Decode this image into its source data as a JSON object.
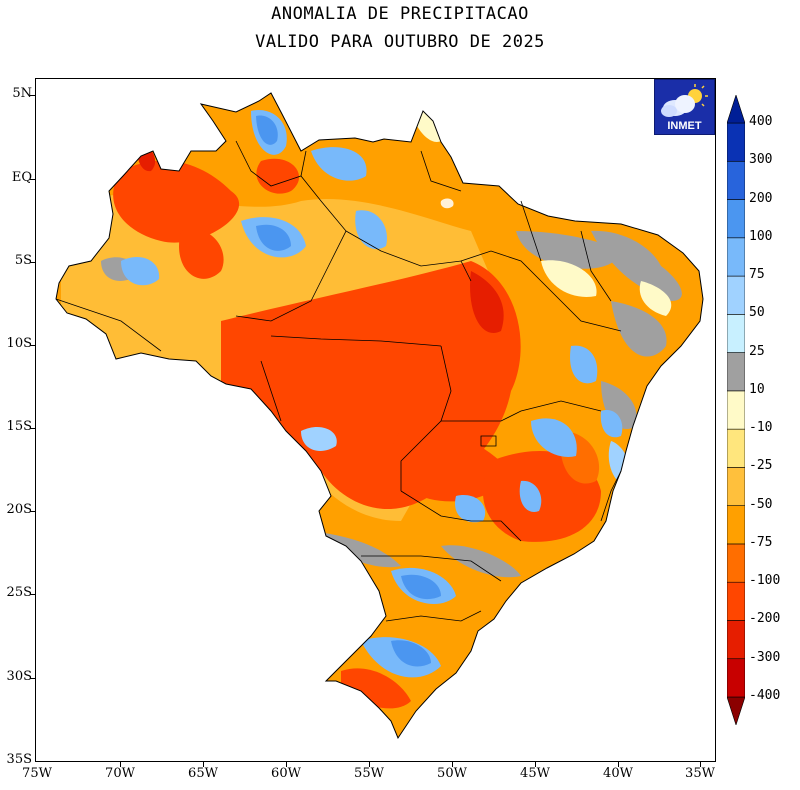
{
  "title": {
    "line1": "ANOMALIA DE PRECIPITACAO",
    "line2": "VALIDO PARA OUTUBRO DE 2025"
  },
  "logo": {
    "text": "INMET",
    "icon": "cloud-sun-icon",
    "color": "#1a2ea8"
  },
  "axes": {
    "lat_labels": [
      "5N",
      "EQ",
      "5S",
      "10S",
      "15S",
      "20S",
      "25S",
      "30S",
      "35S"
    ],
    "lon_labels": [
      "75W",
      "70W",
      "65W",
      "60W",
      "55W",
      "50W",
      "45W",
      "40W",
      "35W"
    ]
  },
  "legend": {
    "labels": [
      "400",
      "300",
      "200",
      "100",
      "75",
      "50",
      "25",
      "10",
      "-10",
      "-25",
      "-50",
      "-75",
      "-100",
      "-200",
      "-300",
      "-400"
    ],
    "colors": [
      "#8b0000",
      "#c80000",
      "#e61e00",
      "#ff4600",
      "#ff6e00",
      "#ffa000",
      "#ffc03c",
      "#ffe67d",
      "#fffac8",
      "#a0a0a0",
      "#c8f0ff",
      "#a0d2ff",
      "#78b9fa",
      "#4b96f0",
      "#2864dc",
      "#0a32b4",
      "#001e96"
    ]
  },
  "map": {
    "region": "Brazil",
    "dominant_colors": {
      "strong_deficit": "#ff4600",
      "deficit": "#ffa000",
      "near_normal": "#a0a0a0",
      "surplus": "#78b9fa"
    }
  }
}
